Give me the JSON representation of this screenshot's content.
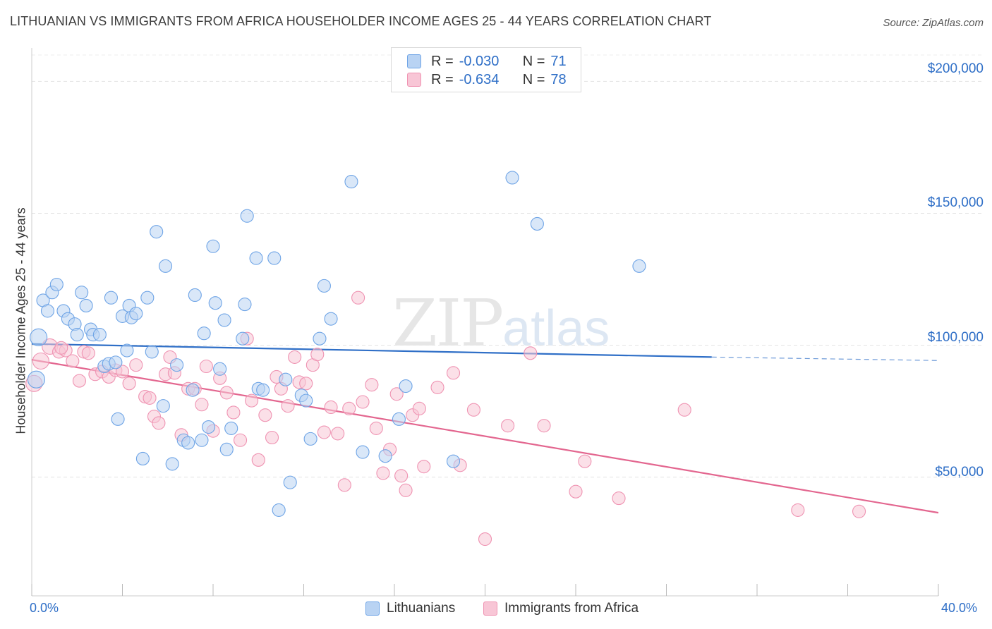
{
  "header": {
    "title": "LITHUANIAN VS IMMIGRANTS FROM AFRICA HOUSEHOLDER INCOME AGES 25 - 44 YEARS CORRELATION CHART",
    "source": "Source: ZipAtlas.com"
  },
  "watermark": {
    "zip": "ZIP",
    "atlas": "atlas"
  },
  "legend": {
    "rows": [
      {
        "r_label": "R =",
        "r_value": "-0.030",
        "n_label": "N =",
        "n_value": "71"
      },
      {
        "r_label": "R =",
        "r_value": "-0.634",
        "n_label": "N =",
        "n_value": "78"
      }
    ]
  },
  "bottom_legend": {
    "series1": "Lithuanians",
    "series2": "Immigrants from Africa"
  },
  "axes": {
    "x_min_label": "0.0%",
    "x_max_label": "40.0%",
    "y_title": "Householder Income Ages 25 - 44 years",
    "y_ticks": [
      "$200,000",
      "$150,000",
      "$100,000",
      "$50,000"
    ]
  },
  "colors": {
    "blue": "#6ea4e6",
    "blue_fill": "#b9d3f3",
    "blue_line": "#2f6fc7",
    "pink": "#ef93b2",
    "pink_fill": "#f8c6d6",
    "pink_line": "#e3668f"
  },
  "chart_data": {
    "type": "scatter",
    "title": "LITHUANIAN VS IMMIGRANTS FROM AFRICA HOUSEHOLDER INCOME AGES 25 - 44 YEARS CORRELATION CHART",
    "xlabel": "",
    "ylabel": "Householder Income Ages 25 - 44 years",
    "xlim": [
      0,
      40
    ],
    "ylim": [
      5000,
      210000
    ],
    "y_ticks": [
      50000,
      100000,
      150000,
      200000
    ],
    "series": [
      {
        "name": "Lithuanians",
        "r": -0.03,
        "n": 71,
        "trend": {
          "x0": 0,
          "y0": 100500,
          "x1": 30,
          "y1": 95500,
          "x_dash_end": 40,
          "y_dash_end": 94200
        },
        "points": [
          [
            0.3,
            103000
          ],
          [
            0.5,
            117000
          ],
          [
            0.7,
            113000
          ],
          [
            0.9,
            120000
          ],
          [
            1.1,
            123000
          ],
          [
            1.4,
            113000
          ],
          [
            1.6,
            110000
          ],
          [
            1.9,
            108000
          ],
          [
            2.2,
            120000
          ],
          [
            2.4,
            115000
          ],
          [
            2.6,
            106000
          ],
          [
            2.7,
            104000
          ],
          [
            3.0,
            104000
          ],
          [
            3.2,
            92000
          ],
          [
            3.4,
            93000
          ],
          [
            3.5,
            118000
          ],
          [
            3.7,
            93500
          ],
          [
            3.8,
            72000
          ],
          [
            4.0,
            111000
          ],
          [
            4.2,
            98000
          ],
          [
            4.3,
            115000
          ],
          [
            4.4,
            110500
          ],
          [
            4.6,
            112000
          ],
          [
            4.9,
            57000
          ],
          [
            5.1,
            118000
          ],
          [
            5.3,
            97500
          ],
          [
            5.5,
            143000
          ],
          [
            5.8,
            77000
          ],
          [
            5.9,
            130000
          ],
          [
            6.2,
            55000
          ],
          [
            6.4,
            92500
          ],
          [
            6.7,
            64000
          ],
          [
            6.9,
            63000
          ],
          [
            7.1,
            83000
          ],
          [
            7.2,
            119000
          ],
          [
            7.5,
            64000
          ],
          [
            7.6,
            104500
          ],
          [
            7.8,
            69000
          ],
          [
            8.0,
            137500
          ],
          [
            8.1,
            116000
          ],
          [
            8.3,
            91000
          ],
          [
            8.5,
            109500
          ],
          [
            8.6,
            60500
          ],
          [
            8.8,
            68500
          ],
          [
            9.3,
            102500
          ],
          [
            9.4,
            115500
          ],
          [
            9.5,
            149000
          ],
          [
            9.9,
            133000
          ],
          [
            10.0,
            83500
          ],
          [
            10.2,
            83000
          ],
          [
            10.7,
            133000
          ],
          [
            10.9,
            37500
          ],
          [
            11.2,
            87000
          ],
          [
            11.4,
            48000
          ],
          [
            11.9,
            81000
          ],
          [
            12.1,
            79000
          ],
          [
            12.3,
            64500
          ],
          [
            12.7,
            102500
          ],
          [
            12.9,
            122500
          ],
          [
            13.2,
            110000
          ],
          [
            14.1,
            162000
          ],
          [
            14.6,
            59500
          ],
          [
            15.6,
            58000
          ],
          [
            16.2,
            72000
          ],
          [
            16.5,
            84500
          ],
          [
            18.6,
            56000
          ],
          [
            21.2,
            163500
          ],
          [
            22.3,
            146000
          ],
          [
            26.8,
            130000
          ],
          [
            0.2,
            87000
          ],
          [
            2.0,
            104000
          ]
        ]
      },
      {
        "name": "Immigrants from Africa",
        "r": -0.634,
        "n": 78,
        "trend": {
          "x0": 0,
          "y0": 94500,
          "x1": 40,
          "y1": 36500
        },
        "points": [
          [
            0.1,
            85500
          ],
          [
            0.4,
            94000
          ],
          [
            0.8,
            99500
          ],
          [
            1.2,
            97500
          ],
          [
            1.5,
            98000
          ],
          [
            1.8,
            94000
          ],
          [
            2.1,
            86500
          ],
          [
            2.3,
            97500
          ],
          [
            2.5,
            97000
          ],
          [
            2.8,
            89000
          ],
          [
            3.1,
            90000
          ],
          [
            3.4,
            88000
          ],
          [
            3.7,
            90500
          ],
          [
            4.0,
            90000
          ],
          [
            4.3,
            85500
          ],
          [
            4.6,
            92500
          ],
          [
            5.0,
            80500
          ],
          [
            5.2,
            80000
          ],
          [
            5.4,
            73000
          ],
          [
            5.6,
            70500
          ],
          [
            5.9,
            89000
          ],
          [
            6.1,
            95500
          ],
          [
            6.3,
            89500
          ],
          [
            6.6,
            66000
          ],
          [
            6.9,
            83500
          ],
          [
            7.2,
            83500
          ],
          [
            7.5,
            77500
          ],
          [
            7.7,
            92000
          ],
          [
            8.0,
            67500
          ],
          [
            8.3,
            87500
          ],
          [
            8.6,
            82000
          ],
          [
            8.9,
            74500
          ],
          [
            9.2,
            64000
          ],
          [
            9.5,
            102500
          ],
          [
            9.7,
            79000
          ],
          [
            10.0,
            56500
          ],
          [
            10.3,
            73500
          ],
          [
            10.6,
            65000
          ],
          [
            10.8,
            88000
          ],
          [
            11.0,
            83500
          ],
          [
            11.3,
            77000
          ],
          [
            11.6,
            95500
          ],
          [
            11.8,
            86000
          ],
          [
            12.1,
            85500
          ],
          [
            12.4,
            92500
          ],
          [
            12.6,
            96500
          ],
          [
            12.9,
            67000
          ],
          [
            13.2,
            76500
          ],
          [
            13.5,
            66500
          ],
          [
            13.8,
            47000
          ],
          [
            14.0,
            76000
          ],
          [
            14.4,
            118000
          ],
          [
            14.6,
            78500
          ],
          [
            15.0,
            85000
          ],
          [
            15.2,
            68500
          ],
          [
            15.5,
            51500
          ],
          [
            15.8,
            60500
          ],
          [
            16.1,
            81500
          ],
          [
            16.3,
            50500
          ],
          [
            16.5,
            45000
          ],
          [
            16.8,
            73500
          ],
          [
            17.1,
            76000
          ],
          [
            17.3,
            54000
          ],
          [
            17.9,
            84000
          ],
          [
            18.6,
            89500
          ],
          [
            18.9,
            54500
          ],
          [
            19.5,
            75500
          ],
          [
            20.0,
            26500
          ],
          [
            21.0,
            69500
          ],
          [
            22.0,
            97000
          ],
          [
            22.6,
            69500
          ],
          [
            24.0,
            44500
          ],
          [
            24.4,
            56000
          ],
          [
            25.9,
            42000
          ],
          [
            28.8,
            75500
          ],
          [
            33.8,
            37500
          ],
          [
            36.5,
            37000
          ],
          [
            1.3,
            99000
          ]
        ]
      }
    ]
  }
}
